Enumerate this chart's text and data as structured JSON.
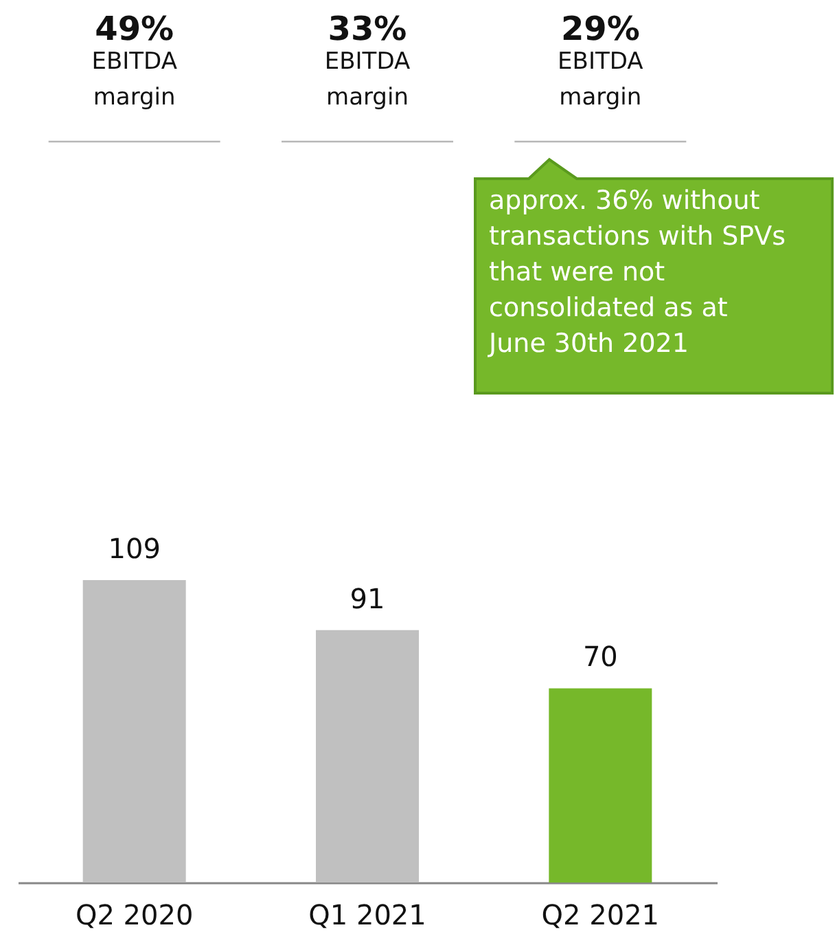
{
  "chart_data": {
    "type": "bar",
    "categories": [
      "Q2 2020",
      "Q1 2021",
      "Q2 2021"
    ],
    "values": [
      109,
      91,
      70
    ],
    "colors": [
      "#c0c0c0",
      "#c0c0c0",
      "#76b82a"
    ],
    "data_labels": true,
    "annotations": [
      "49%",
      "EBITDA\nmargin",
      "33%",
      "EBITDA\nmargin",
      "29%",
      "EBITDA\nmargin",
      "approx. 36% without\ntransactions with SPVs\nthat were not\nconsolidated as at\nJune 30th 2021"
    ]
  }
}
